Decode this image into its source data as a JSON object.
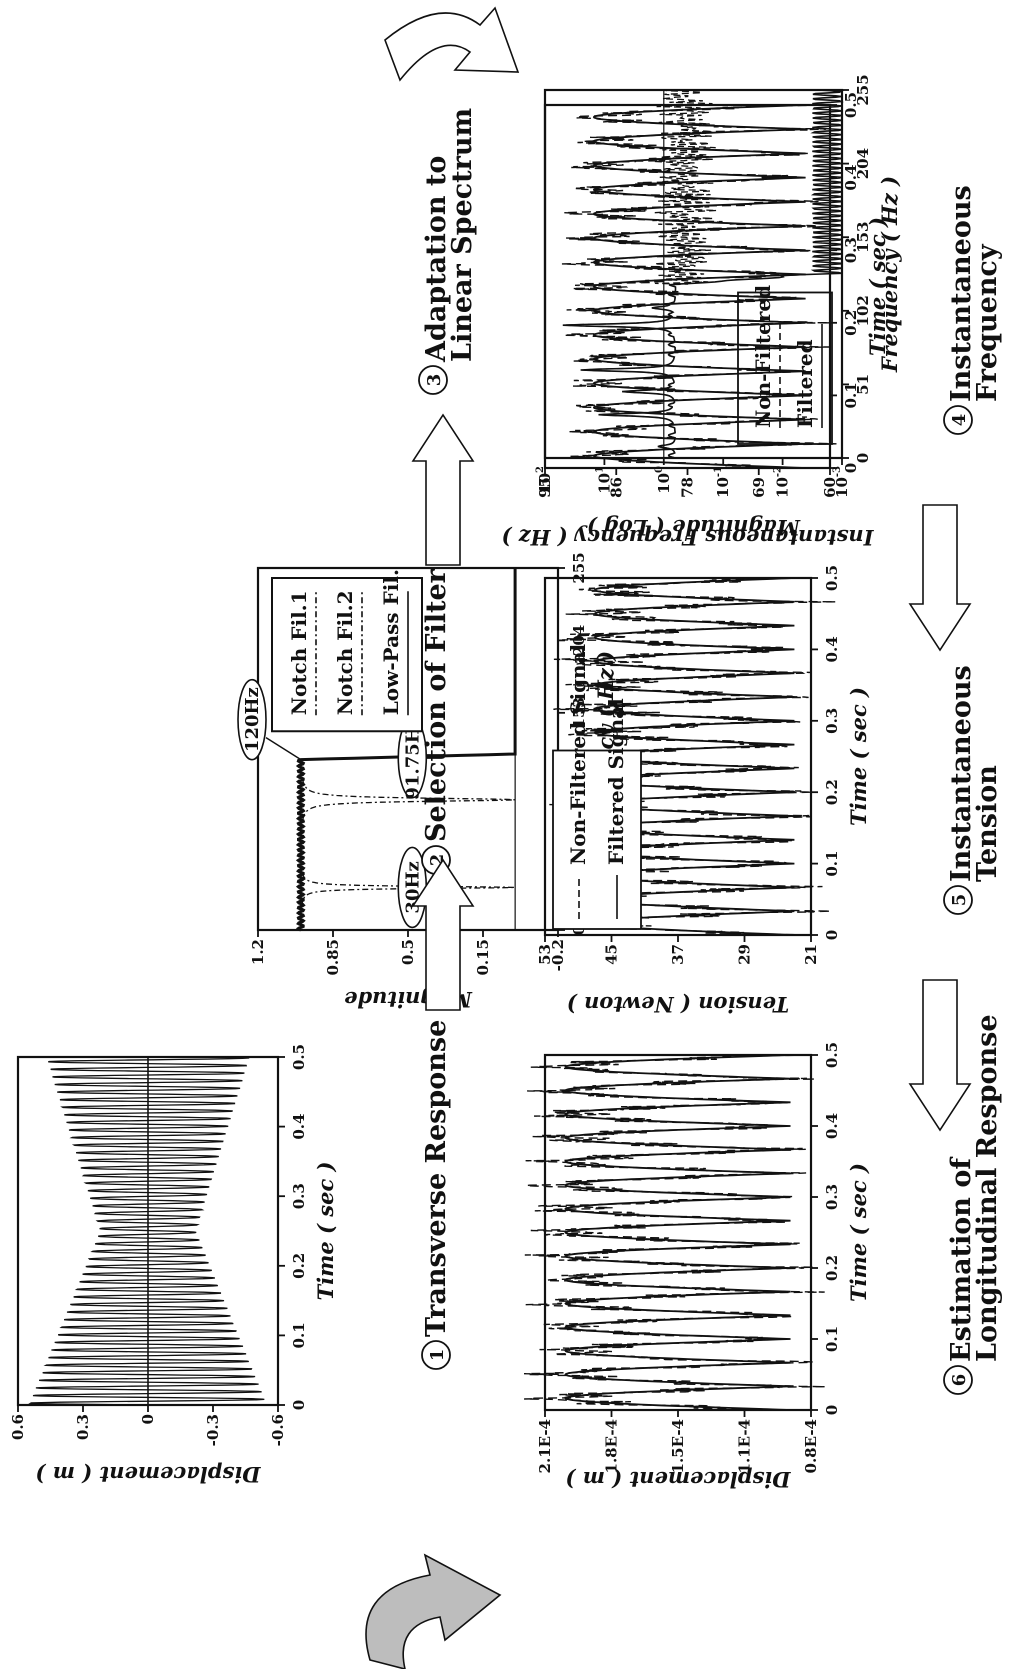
{
  "colors": {
    "ink": "#111111",
    "paper": "#ffffff",
    "arrow_fill": "#bdbdbd"
  },
  "chart_data": [
    {
      "id": "p1",
      "type": "line",
      "ylabel": "Displacement ( m )",
      "xlabel": "Time ( sec )",
      "xticks": [
        "0",
        "0.1",
        "0.2",
        "0.3",
        "0.4",
        "0.5"
      ],
      "yticks": [
        "0.6",
        "0.3",
        "0",
        "-0.3",
        "-0.6"
      ],
      "xlim": [
        0,
        0.5
      ],
      "ylim": [
        -0.6,
        0.6
      ],
      "grid": false,
      "series": [
        {
          "style": "solid",
          "signal": {
            "freq_hz": 91.75,
            "amp_start": 0.55,
            "amp_mid": 0.22,
            "amp_end": 0.47,
            "samples": 1000
          }
        }
      ]
    },
    {
      "id": "p2",
      "type": "line",
      "ylabel": "Magnitude",
      "xlabel": "Frequency ( Hz )",
      "xticks": [
        "0",
        "51",
        "102",
        "153",
        "204",
        "255"
      ],
      "yticks": [
        "1.2",
        "0.85",
        "0.5",
        "0.15",
        "-0.2"
      ],
      "xlim": [
        0,
        255
      ],
      "ylim": [
        -0.2,
        1.2
      ],
      "grid": false,
      "legend": {
        "entries": [
          "Notch Fil.1",
          "Notch Fil.2",
          "Low-Pass Fil."
        ],
        "location": "upper right (rotated page)"
      },
      "annotations": [
        "30Hz",
        "91.75Hz",
        "120Hz"
      ],
      "series": [
        {
          "name": "Notch Fil.1",
          "style": "dashdot",
          "notch_hz": 30,
          "depth_to": 0.0
        },
        {
          "name": "Notch Fil.2",
          "style": "dashdot",
          "notch_hz": 91.75,
          "depth_to": 0.0
        },
        {
          "name": "Low-Pass Fil.",
          "style": "solid",
          "cutoff_hz": 120,
          "pass_level": 1.0,
          "stop_level": 0.0
        }
      ]
    },
    {
      "id": "p3",
      "type": "line",
      "ylabel": "Magnitude ( Log )",
      "xlabel": "Frequency ( Hz )",
      "xticks": [
        "0",
        "51",
        "102",
        "153",
        "204",
        "255"
      ],
      "yticks": [
        "10^2",
        "10^1",
        "10^0",
        "10^-1",
        "10^-2",
        "10^-3"
      ],
      "xlim": [
        0,
        255
      ],
      "ylim_log10": [
        -3,
        2
      ],
      "grid": false,
      "legend": {
        "entries": [
          "Non-Filtered",
          "Filtered"
        ],
        "location": "lower left (rotated page)"
      },
      "series": [
        {
          "name": "Non-Filtered",
          "style": "dashed",
          "peaks_hz": [
            8,
            30,
            46,
            61,
            92,
            104,
            130,
            175
          ]
        },
        {
          "name": "Filtered",
          "style": "solid",
          "peaks_hz": [
            8,
            30,
            46,
            61,
            92,
            104
          ],
          "cutoff_hz": 120,
          "stop_log": -3
        }
      ]
    },
    {
      "id": "p4",
      "type": "line",
      "ylabel": "Displacement ( m )",
      "xlabel": "Time ( sec )",
      "xticks": [
        "0",
        "0.1",
        "0.2",
        "0.3",
        "0.4",
        "0.5"
      ],
      "yticks": [
        "2.1E-4",
        "1.8E-4",
        "1.5E-4",
        "1.1E-4",
        "0.8E-4"
      ],
      "xlim": [
        0,
        0.5
      ],
      "ylim": [
        8e-05,
        0.00021
      ],
      "grid": false,
      "series": [
        {
          "style": "solid",
          "signal": {
            "freq_hz": 60,
            "mean": 0.000145,
            "amp": 5.5e-05
          }
        },
        {
          "style": "dashed",
          "signal": {
            "freq_hz": 60,
            "mean": 0.000145,
            "amp": 5.5e-05,
            "noise": 2e-05
          }
        }
      ]
    },
    {
      "id": "p5",
      "type": "line",
      "ylabel": "Tension ( Newton )",
      "xlabel": "Time ( sec )",
      "xticks": [
        "0",
        "0.1",
        "0.2",
        "0.3",
        "0.4",
        "0.5"
      ],
      "yticks": [
        "53",
        "45",
        "37",
        "29",
        "21"
      ],
      "xlim": [
        0,
        0.5
      ],
      "ylim": [
        21,
        53
      ],
      "grid": false,
      "legend": {
        "entries": [
          "Non-Filtered Signal",
          "Filtered Signal"
        ],
        "location": "upper left (rotated page)"
      },
      "series": [
        {
          "name": "Filtered Signal",
          "style": "solid",
          "signal": {
            "freq_hz": 60,
            "mean": 35,
            "amp": 12
          }
        },
        {
          "name": "Non-Filtered Signal",
          "style": "dashed",
          "signal": {
            "freq_hz": 60,
            "mean": 35,
            "amp": 12,
            "noise": 5
          }
        }
      ]
    },
    {
      "id": "p6",
      "type": "line",
      "ylabel": "Instantaneous Frequency ( Hz )",
      "xlabel": "Time ( sec )",
      "xticks": [
        "0",
        "0.1",
        "0.2",
        "0.3",
        "0.4",
        "0.5"
      ],
      "yticks": [
        "95",
        "86",
        "78",
        "69",
        "60"
      ],
      "xlim": [
        0,
        0.5
      ],
      "ylim": [
        60,
        95
      ],
      "grid": false,
      "series": [
        {
          "style": "solid",
          "signal": {
            "freq_hz": 60,
            "mean": 76,
            "amp": 13
          }
        },
        {
          "style": "dashed",
          "signal": {
            "freq_hz": 60,
            "mean": 76,
            "amp": 13,
            "noise": 4
          }
        }
      ]
    }
  ],
  "steps": [
    {
      "num": "1",
      "text": [
        "Transverse Response"
      ]
    },
    {
      "num": "2",
      "text": [
        "Selection of Filter"
      ]
    },
    {
      "num": "3",
      "text": [
        "Adaptation to",
        "Linear Spectrum"
      ]
    },
    {
      "num": "4",
      "text": [
        "Instantaneous",
        "Frequency"
      ]
    },
    {
      "num": "5",
      "text": [
        "Instantaneous",
        "Tension"
      ]
    },
    {
      "num": "6",
      "text": [
        "Estimation of",
        "Longitudinal Response"
      ]
    }
  ],
  "arrows": [
    {
      "name": "arrow-step-1-to-2",
      "direction": "up",
      "filled": false
    },
    {
      "name": "arrow-step-2-to-3",
      "direction": "up",
      "filled": false
    },
    {
      "name": "arrow-step-3-to-4",
      "direction": "curved-right",
      "filled": false
    },
    {
      "name": "arrow-step-4-to-5",
      "direction": "down",
      "filled": false
    },
    {
      "name": "arrow-step-5-to-6",
      "direction": "down",
      "filled": false
    },
    {
      "name": "arrow-step-6-to-1",
      "direction": "curved-left",
      "filled": true
    }
  ]
}
